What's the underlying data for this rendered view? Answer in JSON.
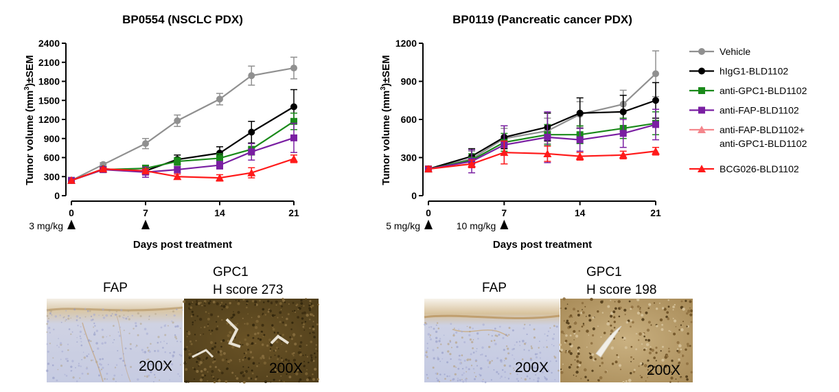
{
  "chart_data": [
    {
      "type": "line",
      "title": "BP0554 (NSCLC PDX)",
      "ylabel_prefix": "Tumor volume (mm",
      "ylabel_sup": "3",
      "ylabel_suffix": ")±SEM",
      "xlabel": "Days post treatment",
      "xticks": [
        0,
        7,
        14,
        21
      ],
      "yticks": [
        0,
        300,
        600,
        900,
        1200,
        1500,
        1800,
        2100,
        2400
      ],
      "xlim": [
        0,
        21
      ],
      "ylim": [
        0,
        2400
      ],
      "dosing": [
        {
          "label": "3 mg/kg",
          "day": 0
        },
        {
          "label": "",
          "day": 7
        }
      ],
      "series": [
        {
          "name": "Vehicle",
          "color": "#909090",
          "marker": "circle",
          "x": [
            0,
            3,
            7,
            10,
            14,
            17,
            21
          ],
          "y": [
            240,
            490,
            820,
            1180,
            1520,
            1890,
            2010
          ],
          "err": [
            0,
            30,
            80,
            90,
            90,
            150,
            170
          ]
        },
        {
          "name": "hIgG1-BLD1102",
          "color": "#000000",
          "marker": "circle",
          "x": [
            0,
            3,
            7,
            10,
            14,
            17,
            21
          ],
          "y": [
            240,
            420,
            390,
            570,
            670,
            1000,
            1400
          ],
          "err": [
            0,
            20,
            40,
            70,
            100,
            170,
            270
          ]
        },
        {
          "name": "anti-GPC1-BLD1102",
          "color": "#1a8a1a",
          "marker": "square",
          "x": [
            0,
            3,
            7,
            10,
            14,
            17,
            21
          ],
          "y": [
            240,
            410,
            430,
            540,
            590,
            730,
            1170
          ],
          "err": [
            0,
            20,
            50,
            60,
            70,
            90,
            130
          ]
        },
        {
          "name": "anti-FAP-BLD1102",
          "color": "#7a1fa2",
          "marker": "square",
          "x": [
            0,
            3,
            7,
            10,
            14,
            17,
            21
          ],
          "y": [
            240,
            410,
            370,
            410,
            480,
            690,
            910
          ],
          "err": [
            0,
            20,
            80,
            50,
            60,
            130,
            230
          ]
        },
        {
          "name": "BCG026-BLD1102",
          "color": "#ff1a1a",
          "marker": "triangle",
          "x": [
            0,
            3,
            7,
            10,
            14,
            17,
            21
          ],
          "y": [
            240,
            420,
            390,
            300,
            280,
            360,
            580
          ],
          "err": [
            0,
            20,
            30,
            40,
            50,
            80,
            60
          ]
        }
      ]
    },
    {
      "type": "line",
      "title": "BP0119 (Pancreatic cancer PDX)",
      "ylabel_prefix": "Tumor volume (mm",
      "ylabel_sup": "3",
      "ylabel_suffix": ")±SEM",
      "xlabel": "Days post treatment",
      "xticks": [
        0,
        7,
        14,
        21
      ],
      "yticks": [
        0,
        300,
        600,
        900,
        1200
      ],
      "xlim": [
        0,
        21
      ],
      "ylim": [
        0,
        1200
      ],
      "dosing": [
        {
          "label": "5 mg/kg",
          "day": 0
        },
        {
          "label": "10 mg/kg",
          "day": 7
        }
      ],
      "series": [
        {
          "name": "Vehicle",
          "color": "#909090",
          "marker": "circle",
          "x": [
            0,
            4,
            7,
            11,
            14,
            18,
            21
          ],
          "y": [
            210,
            290,
            450,
            510,
            640,
            720,
            960
          ],
          "err": [
            20,
            60,
            80,
            100,
            100,
            110,
            180
          ]
        },
        {
          "name": "hIgG1-BLD1102",
          "color": "#000000",
          "marker": "circle",
          "x": [
            0,
            4,
            7,
            11,
            14,
            18,
            21
          ],
          "y": [
            210,
            310,
            460,
            540,
            650,
            660,
            750
          ],
          "err": [
            20,
            60,
            90,
            110,
            120,
            130,
            140
          ]
        },
        {
          "name": "anti-GPC1-BLD1102",
          "color": "#1a8a1a",
          "marker": "square",
          "x": [
            0,
            4,
            7,
            11,
            14,
            18,
            21
          ],
          "y": [
            210,
            280,
            420,
            480,
            480,
            530,
            570
          ],
          "err": [
            20,
            50,
            70,
            80,
            70,
            80,
            90
          ]
        },
        {
          "name": "anti-FAP-BLD1102",
          "color": "#7a1fa2",
          "marker": "square",
          "x": [
            0,
            4,
            7,
            11,
            14,
            18,
            21
          ],
          "y": [
            210,
            270,
            400,
            460,
            440,
            490,
            560
          ],
          "err": [
            20,
            90,
            150,
            200,
            90,
            110,
            120
          ]
        },
        {
          "name": "BCG026-BLD1102",
          "color": "#ff1a1a",
          "marker": "triangle",
          "x": [
            0,
            4,
            7,
            11,
            14,
            18,
            21
          ],
          "y": [
            210,
            250,
            340,
            330,
            310,
            320,
            350
          ],
          "err": [
            20,
            30,
            90,
            60,
            30,
            30,
            30
          ]
        }
      ]
    }
  ],
  "legend": {
    "items": [
      {
        "label": "Vehicle",
        "label2": "",
        "color": "#909090",
        "marker": "circle"
      },
      {
        "label": "hIgG1-BLD1102",
        "label2": "",
        "color": "#000000",
        "marker": "circle"
      },
      {
        "label": "anti-GPC1-BLD1102",
        "label2": "",
        "color": "#1a8a1a",
        "marker": "square"
      },
      {
        "label": "anti-FAP-BLD1102",
        "label2": "",
        "color": "#7a1fa2",
        "marker": "square"
      },
      {
        "label": "anti-FAP-BLD1102+",
        "label2": "anti-GPC1-BLD1102",
        "color": "#f4868c",
        "marker": "triangle"
      },
      {
        "label": "BCG026-BLD1102",
        "label2": "",
        "color": "#ff1a1a",
        "marker": "triangle"
      }
    ]
  },
  "ihc": {
    "left": {
      "fap_label": "FAP",
      "gpc1_label_1": "GPC1",
      "gpc1_label_2": "H score 273",
      "fap_mag": "200X",
      "gpc1_mag": "200X"
    },
    "right": {
      "fap_label": "FAP",
      "gpc1_label_1": "GPC1",
      "gpc1_label_2": "H score 198",
      "fap_mag": "200X",
      "gpc1_mag": "200X"
    }
  }
}
